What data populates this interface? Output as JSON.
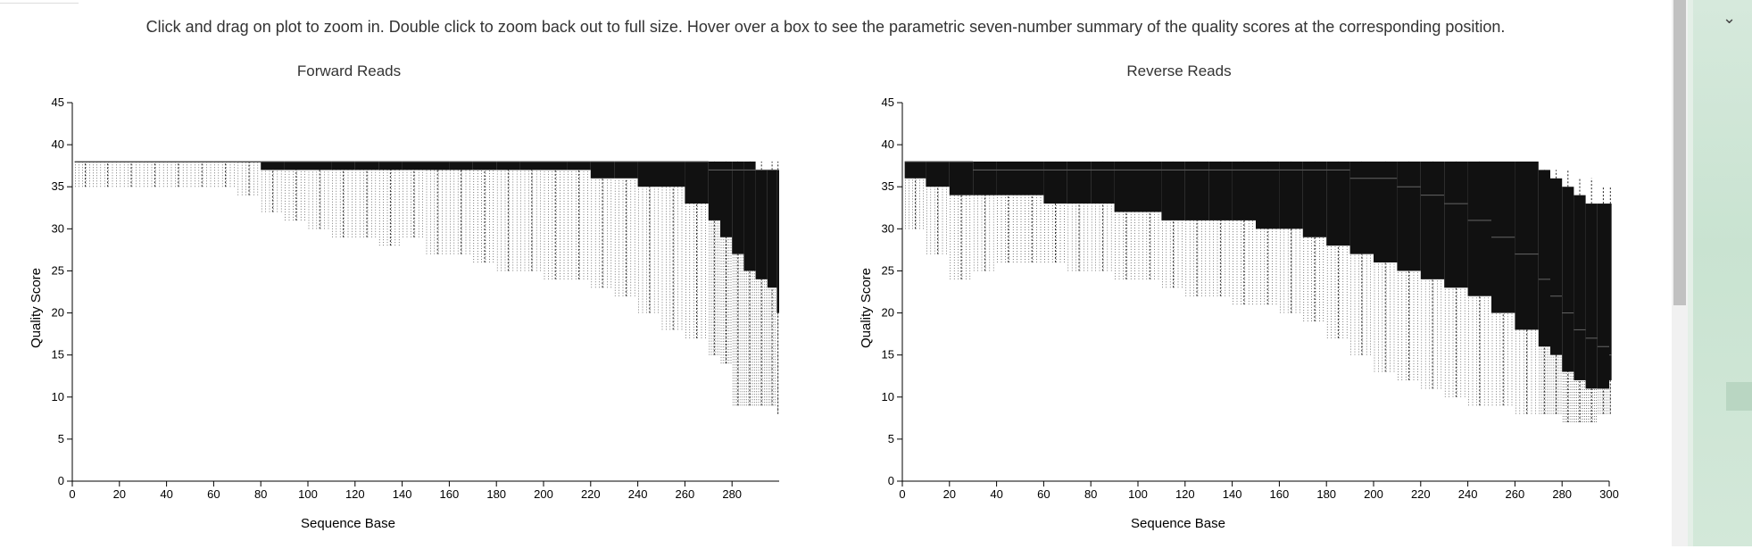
{
  "instructions": "Click and drag on plot to zoom in. Double click to zoom back out to full size. Hover over a box to see the parametric seven-number summary of the quality scores at the corresponding position.",
  "colors": {
    "box_fill": "#111111",
    "whisker": "#222222",
    "axis": "#000000"
  },
  "icons": {
    "collapse": "chevron-down-icon"
  },
  "chart_data": [
    {
      "type": "box",
      "title": "Forward Reads",
      "xlabel": "Sequence Base",
      "ylabel": "Quality Score",
      "xlim": [
        0,
        300
      ],
      "ylim": [
        0,
        45
      ],
      "x_ticks": [
        0,
        20,
        40,
        60,
        80,
        100,
        120,
        140,
        160,
        180,
        200,
        220,
        240,
        260,
        280
      ],
      "y_ticks": [
        0,
        5,
        10,
        15,
        20,
        25,
        30,
        35,
        40,
        45
      ],
      "series": [
        {
          "x": [
            1,
            10,
            20,
            30,
            40,
            50,
            60,
            70,
            80,
            90,
            100,
            110,
            120,
            130,
            140,
            150,
            160,
            170,
            180,
            190,
            200,
            210,
            220,
            230,
            240,
            250,
            260,
            270,
            275,
            280,
            285,
            290,
            295,
            299
          ],
          "whisker_low": [
            35,
            35,
            35,
            35,
            35,
            35,
            35,
            34,
            32,
            31,
            30,
            29,
            29,
            28,
            29,
            27,
            27,
            26,
            25,
            25,
            24,
            24,
            23,
            22,
            20,
            18,
            17,
            15,
            14,
            9,
            9,
            9,
            9,
            8
          ],
          "q1": [
            38,
            38,
            38,
            38,
            38,
            38,
            38,
            38,
            37,
            37,
            37,
            37,
            37,
            37,
            37,
            37,
            37,
            37,
            37,
            37,
            37,
            37,
            36,
            36,
            35,
            35,
            33,
            31,
            29,
            27,
            25,
            24,
            23,
            20
          ],
          "median": [
            38,
            38,
            38,
            38,
            38,
            38,
            38,
            38,
            38,
            38,
            38,
            38,
            38,
            38,
            38,
            38,
            38,
            38,
            38,
            38,
            38,
            38,
            38,
            38,
            38,
            38,
            38,
            37,
            37,
            37,
            37,
            37,
            37,
            37
          ],
          "q3": [
            38,
            38,
            38,
            38,
            38,
            38,
            38,
            38,
            38,
            38,
            38,
            38,
            38,
            38,
            38,
            38,
            38,
            38,
            38,
            38,
            38,
            38,
            38,
            38,
            38,
            38,
            38,
            38,
            38,
            38,
            38,
            37,
            37,
            37
          ],
          "whisker_high": [
            38,
            38,
            38,
            38,
            38,
            38,
            38,
            38,
            38,
            38,
            38,
            38,
            38,
            38,
            38,
            38,
            38,
            38,
            38,
            38,
            38,
            38,
            38,
            38,
            38,
            38,
            38,
            38,
            38,
            38,
            38,
            38,
            38,
            38
          ]
        }
      ]
    },
    {
      "type": "box",
      "title": "Reverse Reads",
      "xlabel": "Sequence Base",
      "ylabel": "Quality Score",
      "xlim": [
        0,
        300
      ],
      "ylim": [
        0,
        45
      ],
      "x_ticks": [
        0,
        20,
        40,
        60,
        80,
        100,
        120,
        140,
        160,
        180,
        200,
        220,
        240,
        260,
        280,
        300
      ],
      "y_ticks": [
        0,
        5,
        10,
        15,
        20,
        25,
        30,
        35,
        40,
        45
      ],
      "series": [
        {
          "x": [
            1,
            10,
            20,
            30,
            40,
            50,
            60,
            70,
            80,
            90,
            100,
            110,
            120,
            130,
            140,
            150,
            160,
            170,
            180,
            190,
            200,
            210,
            220,
            230,
            240,
            250,
            260,
            270,
            275,
            280,
            285,
            290,
            295,
            300
          ],
          "whisker_low": [
            30,
            27,
            24,
            25,
            26,
            26,
            26,
            25,
            25,
            24,
            24,
            23,
            22,
            22,
            21,
            21,
            20,
            19,
            17,
            15,
            13,
            12,
            11,
            10,
            9,
            9,
            8,
            8,
            8,
            7,
            7,
            7,
            8,
            8
          ],
          "q1": [
            36,
            35,
            34,
            34,
            34,
            34,
            33,
            33,
            33,
            32,
            32,
            31,
            31,
            31,
            31,
            30,
            30,
            29,
            28,
            27,
            26,
            25,
            24,
            23,
            22,
            20,
            18,
            16,
            15,
            13,
            12,
            11,
            11,
            12
          ],
          "median": [
            38,
            38,
            38,
            37,
            37,
            37,
            37,
            37,
            37,
            37,
            37,
            37,
            37,
            37,
            37,
            37,
            37,
            37,
            37,
            36,
            36,
            35,
            34,
            33,
            31,
            29,
            27,
            24,
            22,
            20,
            18,
            17,
            16,
            15
          ],
          "q3": [
            38,
            38,
            38,
            38,
            38,
            38,
            38,
            38,
            38,
            38,
            38,
            38,
            38,
            38,
            38,
            38,
            38,
            38,
            38,
            38,
            38,
            38,
            38,
            38,
            38,
            38,
            38,
            37,
            36,
            35,
            34,
            33,
            33,
            33
          ],
          "whisker_high": [
            38,
            38,
            38,
            38,
            38,
            38,
            38,
            38,
            38,
            38,
            38,
            38,
            38,
            38,
            38,
            38,
            38,
            38,
            38,
            38,
            38,
            38,
            38,
            38,
            38,
            37,
            37,
            37,
            37,
            37,
            36,
            36,
            35,
            35
          ]
        }
      ]
    }
  ]
}
